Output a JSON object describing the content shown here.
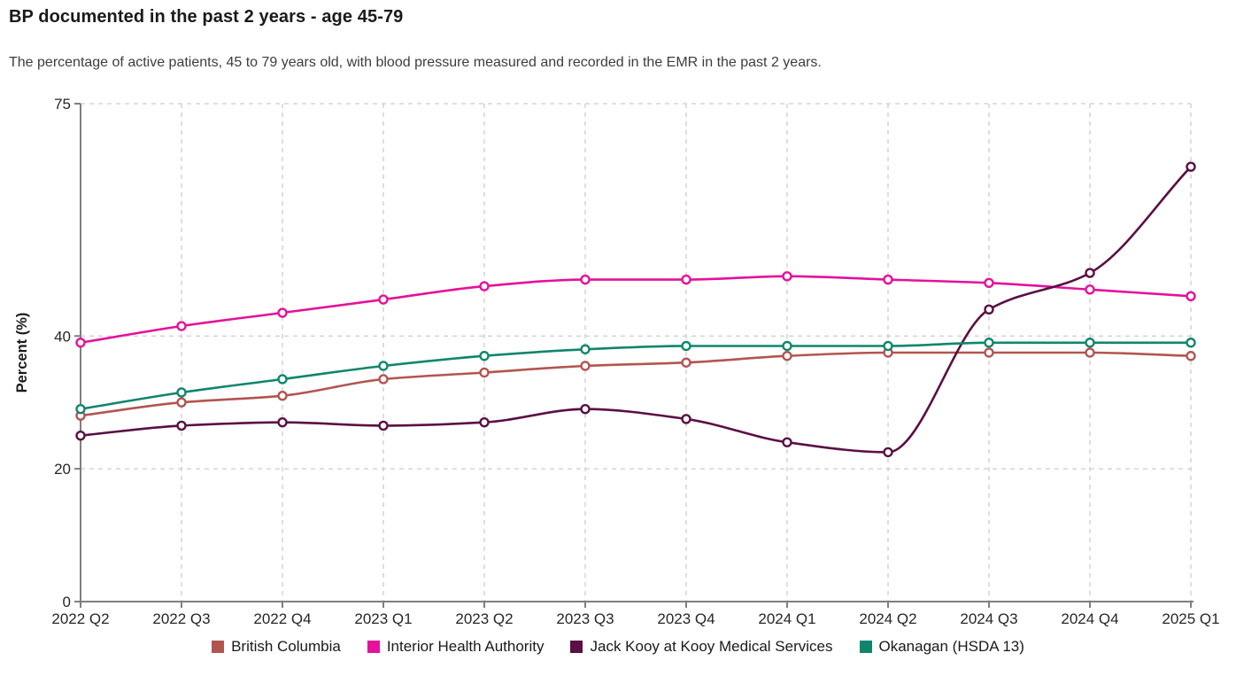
{
  "header": {
    "title": "BP documented in the past 2 years - age 45-79",
    "subtitle": "The percentage of active patients, 45 to 79 years old, with blood pressure measured and recorded in the EMR in the past 2 years."
  },
  "chart_data": {
    "type": "line",
    "title": "BP documented in the past 2 years - age 45-79",
    "xlabel": "",
    "ylabel": "Percent (%)",
    "ylim": [
      0,
      75
    ],
    "y_ticks": [
      0,
      20,
      40,
      75
    ],
    "grid": true,
    "legend_position": "bottom",
    "marker_style": "open-circle",
    "curve": "monotone",
    "categories": [
      "2022 Q2",
      "2022 Q3",
      "2022 Q4",
      "2023 Q1",
      "2023 Q2",
      "2023 Q3",
      "2023 Q4",
      "2024 Q1",
      "2024 Q2",
      "2024 Q3",
      "2024 Q4",
      "2025 Q1"
    ],
    "series": [
      {
        "name": "British Columbia",
        "color": "#b25550",
        "values": [
          28,
          30,
          31,
          33.5,
          34.5,
          35.5,
          36,
          37,
          37.5,
          37.5,
          37.5,
          37
        ]
      },
      {
        "name": "Interior Health Authority",
        "color": "#e4119b",
        "values": [
          39,
          41.5,
          43.5,
          45.5,
          47.5,
          48.5,
          48.5,
          49,
          48.5,
          48,
          47,
          46
        ]
      },
      {
        "name": "Jack Kooy at Kooy Medical Services",
        "color": "#5b0f44",
        "values": [
          25,
          26.5,
          27,
          26.5,
          27,
          29,
          27.5,
          24,
          22.5,
          44,
          49.5,
          65.5
        ]
      },
      {
        "name": "Okanagan (HSDA 13)",
        "color": "#0f866c",
        "values": [
          29,
          31.5,
          33.5,
          35.5,
          37,
          38,
          38.5,
          38.5,
          38.5,
          39,
          39,
          39
        ]
      }
    ]
  },
  "style": {
    "axis_color": "#7f7f7f",
    "grid_color": "#cccccc",
    "tick_text_color": "#262626",
    "marker_fill": "#ffffff"
  }
}
